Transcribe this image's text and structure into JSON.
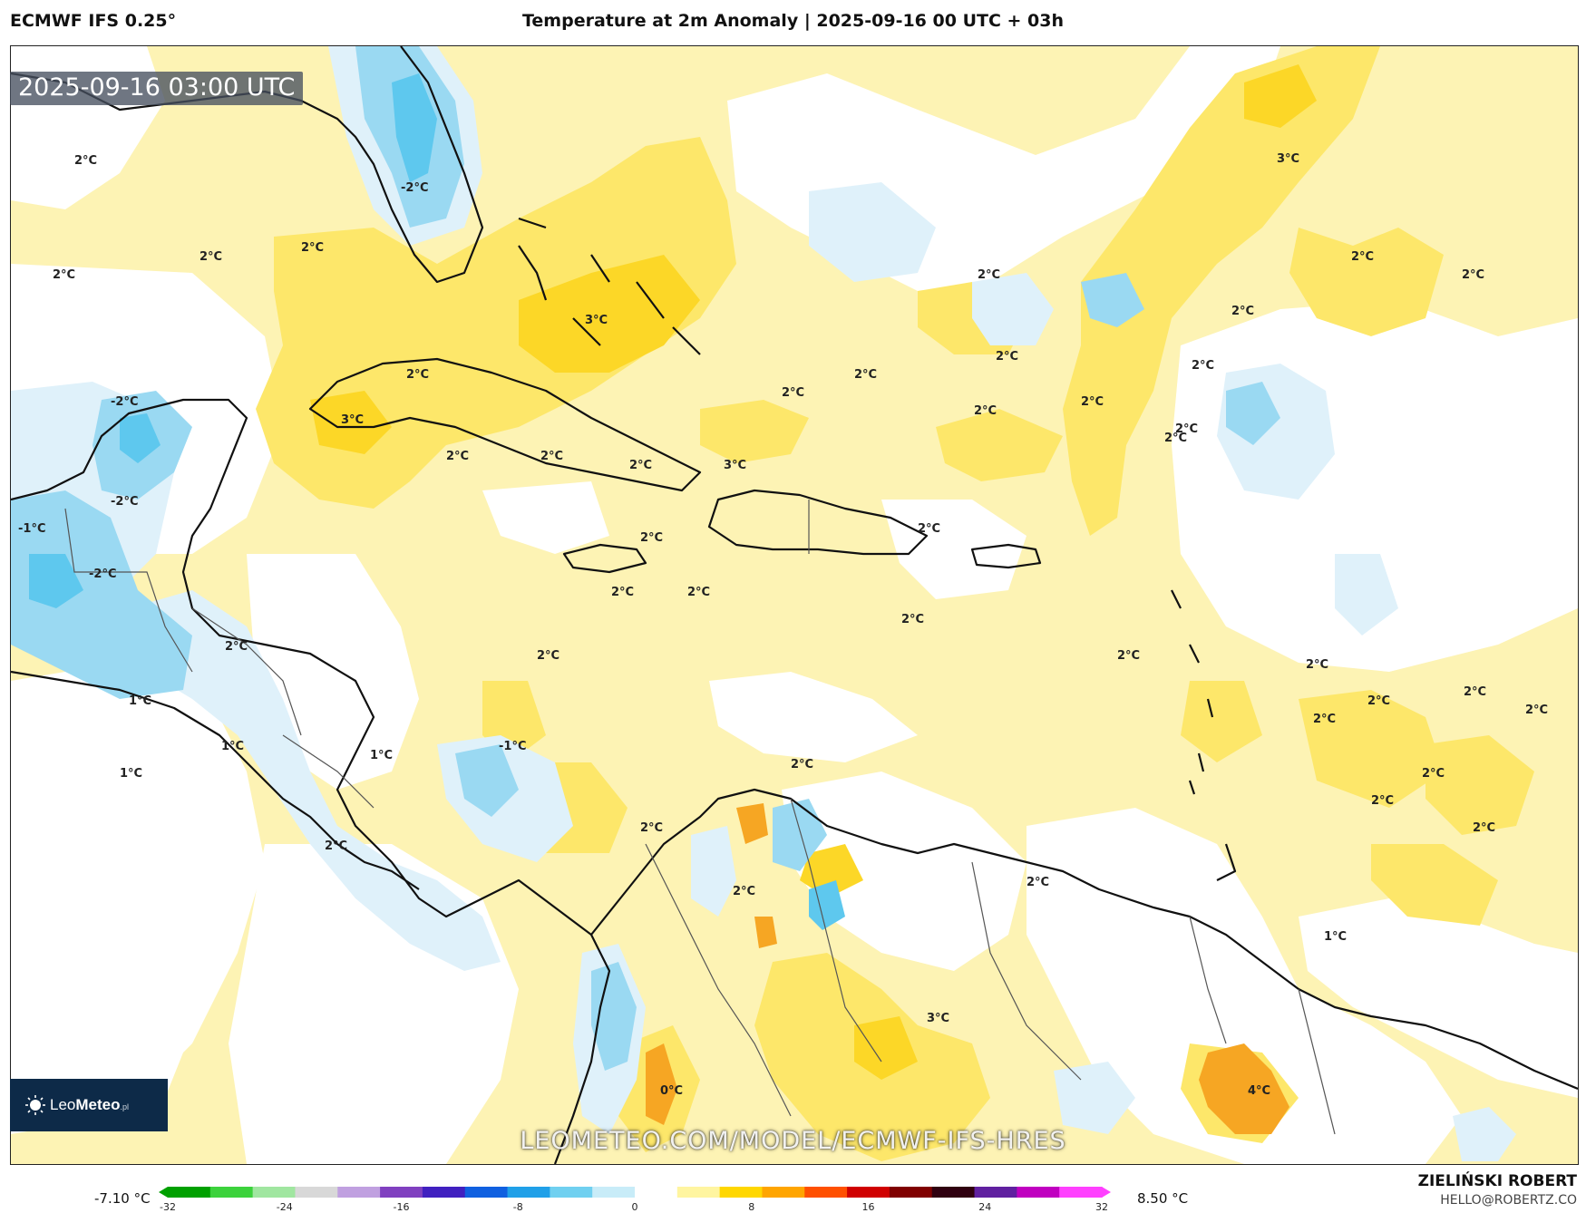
{
  "header": {
    "model": "ECMWF IFS 0.25°",
    "title": "Temperature at 2m Anomaly | 2025-09-16 00 UTC + 03h"
  },
  "map": {
    "valid_time": "2025-09-16 03:00 UTC",
    "watermark": "LEOMETEO.COM/MODEL/ECMWF-IFS-HRES",
    "logo": {
      "name": "LeoMeteo",
      "part1": "Leo",
      "part2": "Meteo",
      "suffix": ".pl"
    },
    "labels": [
      "2°C",
      "-2°C",
      "2°C",
      "2°C",
      "2°C",
      "3°C",
      "2°C",
      "2°C",
      "2°C",
      "2°C",
      "2°C",
      "2°C",
      "2°C",
      "3°C",
      "2°C",
      "-2°C",
      "2°C",
      "2°C",
      "2°C",
      "2°C",
      "2°C",
      "2°C",
      "2°C",
      "2°C",
      "3°C",
      "-2°C",
      "2°C",
      "2°C",
      "3°C",
      "2°C",
      "2°C",
      "-1°C",
      "-2°C",
      "2°C",
      "2°C",
      "2°C",
      "2°C",
      "2°C",
      "2°C",
      "2°C",
      "2°C",
      "2°C",
      "1°C",
      "1°C",
      "1°C",
      "-1°C",
      "1°C",
      "2°C",
      "2°C",
      "2°C",
      "2°C",
      "2°C",
      "2°C",
      "2°C",
      "2°C",
      "1°C",
      "3°C",
      "4°C",
      "0°C"
    ],
    "colors": {
      "warm_light": "#fdf3b4",
      "warm_mid": "#fde76a",
      "warm_strong": "#fcd727",
      "warm_hot": "#f6a623",
      "neutral": "#ffffff",
      "cool_light": "#dff1fa",
      "cool_mid": "#9ad9f2",
      "cool_strong": "#5ec8ee",
      "coast": "#111111",
      "border": "#555555"
    }
  },
  "colorbar": {
    "min_label": "-7.10 °C",
    "max_label": "8.50 °C",
    "ticks": [
      "-32",
      "-24",
      "-16",
      "-8",
      "0",
      "8",
      "16",
      "24",
      "32"
    ],
    "stops": [
      "#00a000",
      "#3cd23c",
      "#a0e6a0",
      "#d8d8d8",
      "#c0a0e0",
      "#8040c0",
      "#4020c0",
      "#1060e0",
      "#20a0e8",
      "#70d0f0",
      "#c8ecf8",
      "#ffffff",
      "#fff5a0",
      "#ffd700",
      "#ffa500",
      "#ff5000",
      "#d00000",
      "#800000",
      "#300010",
      "#6020a0",
      "#c000c0",
      "#ff40ff"
    ]
  },
  "footer": {
    "author": "ZIELIŃSKI ROBERT",
    "email": "HELLO@ROBERTZ.CO"
  }
}
